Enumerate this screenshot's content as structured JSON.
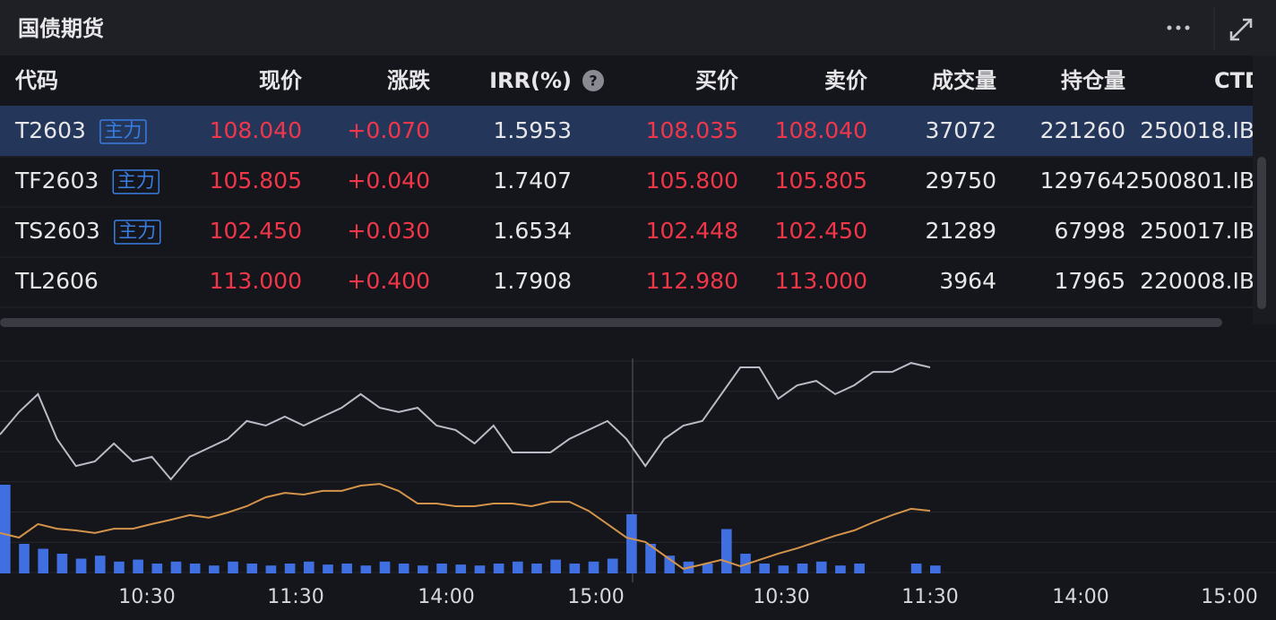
{
  "header": {
    "title": "国债期货"
  },
  "table": {
    "columns": [
      "代码",
      "现价",
      "涨跌",
      "IRR(%)",
      "买价",
      "卖价",
      "成交量",
      "持仓量",
      "CTD"
    ],
    "rows": [
      {
        "code": "T2603",
        "badge": "主力",
        "cells": [
          "108.040",
          "+0.070",
          "1.5953",
          "108.035",
          "108.040",
          "37072",
          "221260",
          "250018.IB"
        ]
      },
      {
        "code": "TF2603",
        "badge": "主力",
        "cells": [
          "105.805",
          "+0.040",
          "1.7407",
          "105.800",
          "105.805",
          "29750",
          "129764",
          "2500801.IB"
        ]
      },
      {
        "code": "TS2603",
        "badge": "主力",
        "cells": [
          "102.450",
          "+0.030",
          "1.6534",
          "102.448",
          "102.450",
          "21289",
          "67998",
          "250017.IB"
        ]
      },
      {
        "code": "TL2606",
        "cells": [
          "113.000",
          "+0.400",
          "1.7908",
          "112.980",
          "113.000",
          "3964",
          "17965",
          "220008.IB"
        ]
      }
    ]
  },
  "chart": {
    "x_labels": [
      "10:30",
      "11:30",
      "14:00",
      "15:00",
      "10:30",
      "11:30",
      "14:00",
      "15:00"
    ],
    "ylim": [
      0,
      100
    ],
    "volume_lim": [
      0,
      100
    ],
    "series": [
      {
        "color": "#b9bcc6",
        "values": [
          61.1,
          70.4,
          77.8,
          59.3,
          48.1,
          50.0,
          57.4,
          50.0,
          51.9,
          42.6,
          51.9,
          55.6,
          59.3,
          66.7,
          64.8,
          68.5,
          64.8,
          68.5,
          72.2,
          77.8,
          72.2,
          70.4,
          72.2,
          64.8,
          63.0,
          57.4,
          64.8,
          53.7,
          53.7,
          53.7,
          59.3,
          63.0,
          66.7,
          59.3,
          48.1,
          59.3,
          64.8,
          66.7,
          77.8,
          88.9,
          88.9,
          75.9,
          81.5,
          83.3,
          77.8,
          81.5,
          87.0,
          87.0,
          90.7,
          88.9
        ]
      },
      {
        "color": "#d3934a",
        "values": [
          20.4,
          18.5,
          24.1,
          22.2,
          21.5,
          20.4,
          22.2,
          22.2,
          24.1,
          25.9,
          27.8,
          26.7,
          28.9,
          31.5,
          35.2,
          37.0,
          36.3,
          37.8,
          37.8,
          40.0,
          40.7,
          37.8,
          32.6,
          32.6,
          31.5,
          31.5,
          32.6,
          32.6,
          31.5,
          33.3,
          33.3,
          29.6,
          24.1,
          18.5,
          16.7,
          11.1,
          5.6,
          7.4,
          9.3,
          6.7,
          9.3,
          11.9,
          14.1,
          16.7,
          19.3,
          21.5,
          24.8,
          27.8,
          30.4,
          29.6
        ]
      }
    ],
    "volume": {
      "color": "#3f6fe0",
      "values": [
        90,
        30,
        25,
        20,
        15,
        18,
        12,
        14,
        10,
        12,
        10,
        8,
        12,
        10,
        8,
        10,
        12,
        9,
        10,
        8,
        12,
        10,
        8,
        10,
        9,
        8,
        10,
        12,
        10,
        14,
        10,
        12,
        15,
        60,
        30,
        18,
        12,
        10,
        45,
        20,
        10,
        8,
        10,
        12,
        8,
        10,
        0,
        0,
        10,
        8
      ]
    }
  }
}
